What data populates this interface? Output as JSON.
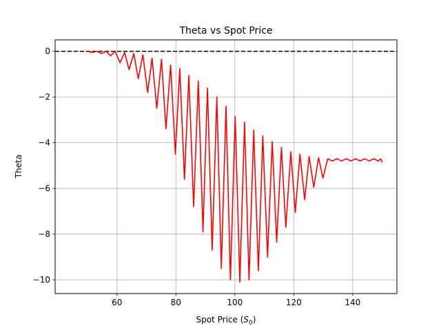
{
  "chart_data": {
    "type": "line",
    "title": "Theta vs Spot Price",
    "xlabel_main": "Spot Price (",
    "xlabel_sym": "S",
    "xlabel_sub": "0",
    "xlabel_end": ")",
    "ylabel": "Theta",
    "xlim": [
      39,
      155
    ],
    "ylim": [
      -10.6,
      0.5
    ],
    "xticks": [
      60,
      80,
      100,
      120,
      140
    ],
    "yticks": [
      0,
      -2,
      -4,
      -6,
      -8,
      -10
    ],
    "ytick_labels": [
      "0",
      "−2",
      "−4",
      "−6",
      "−8",
      "−10"
    ],
    "grid": true,
    "series": [
      {
        "color": "#ff0000",
        "x": [
          50,
          51.6,
          53.2,
          54.7,
          56.3,
          57.8,
          59.4,
          61.0,
          62.6,
          64.1,
          65.7,
          67.2,
          68.8,
          70.4,
          71.9,
          73.5,
          75.1,
          76.6,
          78.2,
          79.8,
          81.3,
          82.9,
          84.4,
          86.0,
          87.6,
          89.2,
          90.7,
          92.3,
          93.9,
          95.4,
          97.0,
          98.5,
          100.1,
          101.7,
          103.3,
          104.8,
          106.4,
          108.0,
          109.5,
          111.1,
          112.7,
          114.2,
          115.8,
          117.3,
          119.0,
          120.5,
          122.1,
          123.7,
          125.2,
          126.8,
          128.4,
          129.9,
          131.5,
          133.1,
          134.7,
          136.2,
          137.8,
          139.4,
          140.9,
          142.5,
          144.1,
          145.6,
          147.2,
          148.7,
          149.5,
          150
        ],
        "y": [
          0,
          -0.05,
          0,
          -0.1,
          0,
          -0.2,
          0,
          -0.5,
          -0.05,
          -0.8,
          -0.1,
          -1.2,
          -0.15,
          -1.8,
          -0.3,
          -2.5,
          -0.35,
          -3.4,
          -0.6,
          -4.5,
          -0.75,
          -5.6,
          -1.05,
          -6.8,
          -1.3,
          -7.9,
          -1.6,
          -8.7,
          -2.0,
          -9.5,
          -2.4,
          -10.0,
          -2.85,
          -10.1,
          -3.1,
          -10.0,
          -3.45,
          -9.6,
          -3.7,
          -9.0,
          -3.95,
          -8.35,
          -4.2,
          -7.7,
          -4.4,
          -7.05,
          -4.5,
          -6.5,
          -4.6,
          -5.95,
          -4.65,
          -5.55,
          -4.7,
          -4.8,
          -4.7,
          -4.8,
          -4.7,
          -4.8,
          -4.7,
          -4.8,
          -4.7,
          -4.8,
          -4.7,
          -4.8,
          -4.7,
          -4.85
        ]
      }
    ],
    "reference_lines": [
      {
        "y": 0,
        "color": "#000000",
        "style": "dashed"
      }
    ]
  }
}
